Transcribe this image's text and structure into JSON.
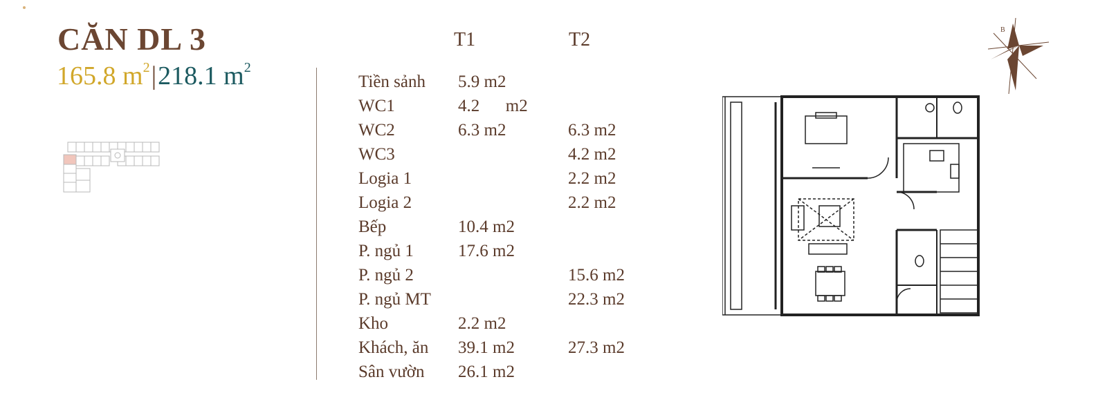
{
  "unit": {
    "title": "CĂN DL 3",
    "area_1_value": "165.8 m",
    "area_1_sup": "2",
    "separator": "|",
    "area_2_value": "218.1 m",
    "area_2_sup": "2"
  },
  "table": {
    "headers": {
      "t1": "T1",
      "t2": "T2"
    },
    "rows": [
      {
        "name": "Tiền sảnh",
        "t1": "5.9 m2",
        "t2": ""
      },
      {
        "name": "WC1",
        "t1": "4.2      m2",
        "t2": ""
      },
      {
        "name": "WC2",
        "t1": "6.3 m2",
        "t2": "6.3 m2"
      },
      {
        "name": "WC3",
        "t1": "",
        "t2": "4.2 m2"
      },
      {
        "name": "Logia 1",
        "t1": "",
        "t2": "2.2 m2"
      },
      {
        "name": "Logia 2",
        "t1": "",
        "t2": "2.2 m2"
      },
      {
        "name": "Bếp",
        "t1": "10.4 m2",
        "t2": ""
      },
      {
        "name": "P. ngủ 1",
        "t1": "17.6 m2",
        "t2": ""
      },
      {
        "name": "P. ngủ 2",
        "t1": "",
        "t2": "15.6 m2"
      },
      {
        "name": "P. ngủ MT",
        "t1": "",
        "t2": "22.3 m2"
      },
      {
        "name": "Kho",
        "t1": "2.2 m2",
        "t2": ""
      },
      {
        "name": "Khách, ăn",
        "t1": "39.1 m2",
        "t2": "27.3 m2"
      },
      {
        "name": "Sân vườn",
        "t1": "26.1 m2",
        "t2": ""
      }
    ]
  },
  "compass_label": "B",
  "colors": {
    "title_brown": "#6b4632",
    "area_gold": "#d1a72a",
    "area_teal": "#1c5a60",
    "text_brown": "#5a3a2a",
    "highlight_pink": "#f1c6bc"
  },
  "icons": [
    "compass-rose-icon",
    "key-plan-diagram",
    "floor-plan-drawing"
  ]
}
